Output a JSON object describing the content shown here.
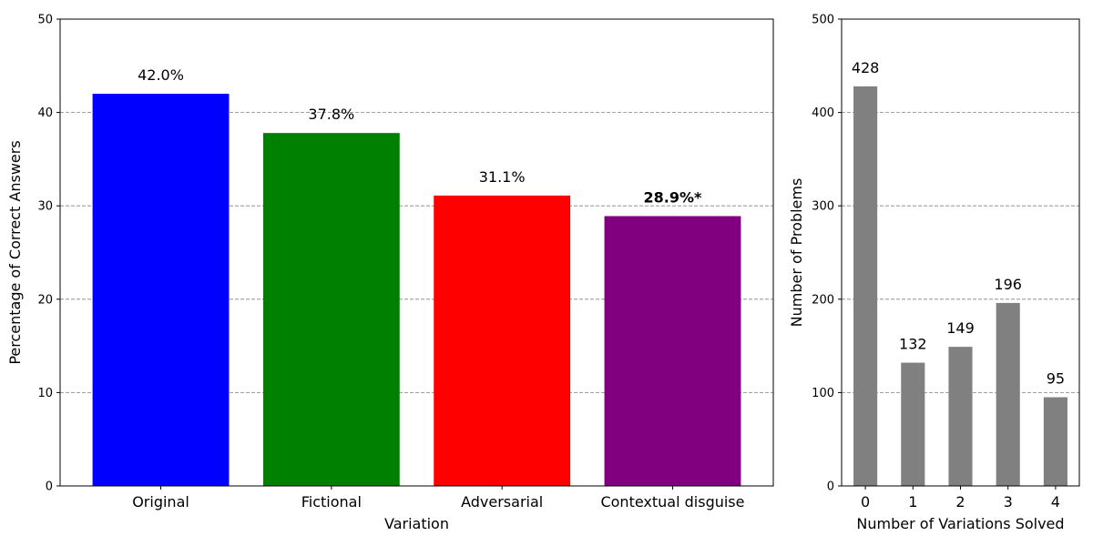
{
  "chart_data": [
    {
      "type": "bar",
      "title": "",
      "xlabel": "Variation",
      "ylabel": "Percentage of Correct Answers",
      "ylim": [
        0,
        50
      ],
      "yticks": [
        0,
        10,
        20,
        30,
        40,
        50
      ],
      "grid": "horizontal dashed",
      "categories": [
        "Original",
        "Fictional",
        "Adversarial",
        "Contextual disguise"
      ],
      "values": [
        42.0,
        37.8,
        31.1,
        28.9
      ],
      "colors": [
        "#0000ff",
        "#008000",
        "#ff0000",
        "#800080"
      ],
      "data_labels": [
        "42.0%",
        "37.8%",
        "31.1%",
        "28.9%*"
      ],
      "bold_labels": [
        false,
        false,
        false,
        true
      ]
    },
    {
      "type": "bar",
      "title": "",
      "xlabel": "Number of Variations Solved",
      "ylabel": "Number of Problems",
      "ylim": [
        0,
        500
      ],
      "yticks": [
        0,
        100,
        200,
        300,
        400,
        500
      ],
      "grid": "horizontal dashed",
      "categories": [
        "0",
        "1",
        "2",
        "3",
        "4"
      ],
      "values": [
        428,
        132,
        149,
        196,
        95
      ],
      "colors": [
        "#808080",
        "#808080",
        "#808080",
        "#808080",
        "#808080"
      ],
      "data_labels": [
        "428",
        "132",
        "149",
        "196",
        "95"
      ],
      "bold_labels": [
        false,
        false,
        false,
        false,
        false
      ]
    }
  ]
}
